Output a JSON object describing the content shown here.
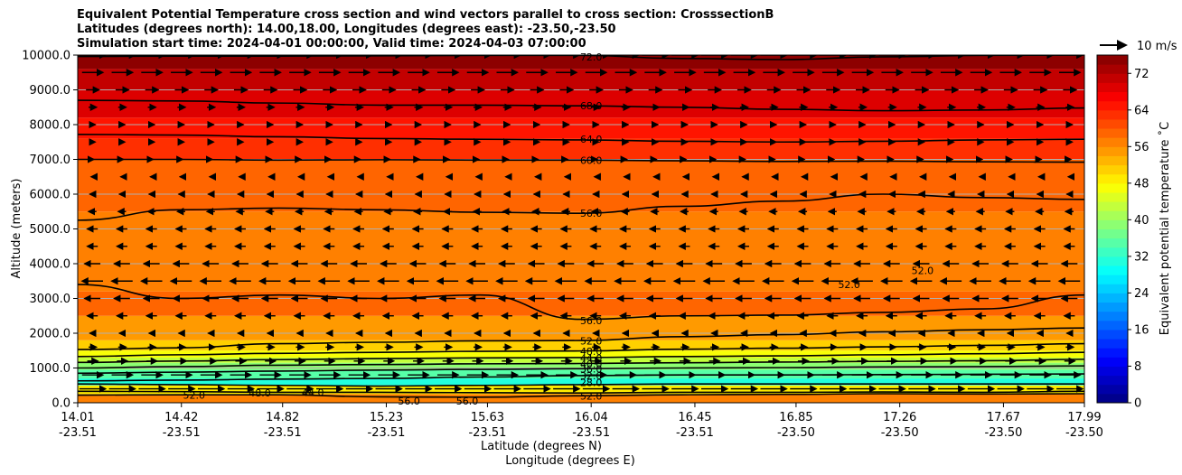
{
  "chart_data": {
    "type": "heatmap",
    "title_lines": [
      "Equivalent Potential Temperature cross section and wind vectors parallel to cross section: CrosssectionB",
      "Latitudes (degrees north): 14.00,18.00, Longitudes (degrees east): -23.50,-23.50",
      "Simulation start time: 2024-04-01 00:00:00, Valid time: 2024-04-03 07:00:00"
    ],
    "ylabel": "Altitude (meters)",
    "xlabel_lat": "Latitude (degrees N)",
    "xlabel_lon": "Longitude (degrees E)",
    "colorbar_label": "Equivalent potential temperature ˚C",
    "wind_key_label": "10 m/s",
    "ylim": [
      0,
      10000
    ],
    "y_ticks": [
      "0.0",
      "1000.0",
      "2000.0",
      "3000.0",
      "4000.0",
      "5000.0",
      "6000.0",
      "7000.0",
      "8000.0",
      "9000.0",
      "10000.0"
    ],
    "x_ticks_lat": [
      "14.01",
      "14.42",
      "14.82",
      "15.23",
      "15.63",
      "16.04",
      "16.45",
      "16.85",
      "17.26",
      "17.67",
      "17.99"
    ],
    "x_ticks_lon": [
      "-23.51",
      "-23.51",
      "-23.51",
      "-23.51",
      "-23.51",
      "-23.51",
      "-23.51",
      "-23.50",
      "-23.50",
      "-23.50",
      "-23.50"
    ],
    "colorbar_range": [
      0,
      76
    ],
    "colorbar_ticks": [
      "0",
      "8",
      "16",
      "24",
      "32",
      "40",
      "48",
      "56",
      "64",
      "72"
    ],
    "contour_labels": [
      {
        "text": "72.0",
        "lat": 16.04,
        "alt": 9950
      },
      {
        "text": "68.0",
        "lat": 16.04,
        "alt": 8540
      },
      {
        "text": "64.0",
        "lat": 16.04,
        "alt": 7580
      },
      {
        "text": "60.0",
        "lat": 16.04,
        "alt": 6980
      },
      {
        "text": "56.0",
        "lat": 16.04,
        "alt": 5450
      },
      {
        "text": "56.0",
        "lat": 16.04,
        "alt": 2370
      },
      {
        "text": "52.0",
        "lat": 16.04,
        "alt": 1780
      },
      {
        "text": "48.0",
        "lat": 16.04,
        "alt": 1480
      },
      {
        "text": "44.0",
        "lat": 16.04,
        "alt": 1280
      },
      {
        "text": "40.0",
        "lat": 16.04,
        "alt": 1120
      },
      {
        "text": "36.0",
        "lat": 16.04,
        "alt": 980
      },
      {
        "text": "32.0",
        "lat": 16.04,
        "alt": 780
      },
      {
        "text": "28.0",
        "lat": 16.04,
        "alt": 580
      },
      {
        "text": "52.0",
        "lat": 16.04,
        "alt": 200
      },
      {
        "text": "52.0",
        "lat": 14.47,
        "alt": 220
      },
      {
        "text": "48.0",
        "lat": 14.73,
        "alt": 280
      },
      {
        "text": "44.0",
        "lat": 14.94,
        "alt": 300
      },
      {
        "text": "56.0",
        "lat": 15.32,
        "alt": 50
      },
      {
        "text": "56.0",
        "lat": 15.55,
        "alt": 50
      },
      {
        "text": "52.0",
        "lat": 17.06,
        "alt": 3400
      },
      {
        "text": "52.0",
        "lat": 17.35,
        "alt": 3800
      }
    ],
    "contours": [
      {
        "level": 72,
        "alt": [
          9960,
          9970,
          9970,
          9980,
          9990,
          9990,
          9900,
          9870,
          9950,
          9990,
          10000
        ]
      },
      {
        "level": 68,
        "alt": [
          8700,
          8680,
          8620,
          8560,
          8560,
          8540,
          8500,
          8440,
          8400,
          8420,
          8480
        ]
      },
      {
        "level": 64,
        "alt": [
          7720,
          7700,
          7650,
          7600,
          7580,
          7560,
          7520,
          7500,
          7520,
          7560,
          7580
        ]
      },
      {
        "level": 60,
        "alt": [
          7000,
          7000,
          6980,
          6990,
          6980,
          6980,
          6960,
          6940,
          6950,
          6930,
          6920
        ]
      },
      {
        "level": 56,
        "alt": [
          5250,
          5550,
          5600,
          5550,
          5480,
          5450,
          5650,
          5800,
          6000,
          5900,
          5850
        ]
      },
      {
        "level": 56,
        "alt": [
          3400,
          3000,
          3100,
          3000,
          3100,
          2400,
          2500,
          2520,
          2600,
          2700,
          3100
        ]
      },
      {
        "level": 52,
        "alt": [
          1530,
          1580,
          1700,
          1740,
          1780,
          1790,
          1900,
          1960,
          2040,
          2100,
          2150
        ]
      },
      {
        "level": 48,
        "alt": [
          1330,
          1380,
          1420,
          1450,
          1480,
          1490,
          1540,
          1570,
          1610,
          1650,
          1700
        ]
      },
      {
        "level": 44,
        "alt": [
          1160,
          1200,
          1240,
          1270,
          1290,
          1300,
          1330,
          1350,
          1380,
          1410,
          1450
        ]
      },
      {
        "level": 40,
        "alt": [
          1000,
          1040,
          1080,
          1100,
          1120,
          1130,
          1150,
          1170,
          1190,
          1210,
          1250
        ]
      },
      {
        "level": 36,
        "alt": [
          850,
          880,
          910,
          940,
          960,
          980,
          1000,
          1010,
          1030,
          1040,
          1060
        ]
      },
      {
        "level": 32,
        "alt": [
          630,
          650,
          680,
          700,
          740,
          780,
          800,
          800,
          810,
          820,
          830
        ]
      },
      {
        "level": 28,
        "alt": [
          540,
          520,
          500,
          480,
          500,
          520,
          540,
          540,
          540,
          540,
          540
        ]
      },
      {
        "level": 52,
        "alt": [
          330,
          320,
          300,
          300,
          290,
          280,
          300,
          300,
          310,
          300,
          330
        ]
      },
      {
        "level": 56,
        "alt": [
          220,
          230,
          230,
          170,
          160,
          200,
          230,
          240,
          260,
          250,
          260
        ]
      }
    ],
    "field_bands": [
      {
        "from": 0,
        "to": 250,
        "value": 56
      },
      {
        "from": 250,
        "to": 500,
        "value": 48
      },
      {
        "from": 500,
        "to": 700,
        "value": 30
      },
      {
        "from": 700,
        "to": 950,
        "value": 34
      },
      {
        "from": 950,
        "to": 1150,
        "value": 38
      },
      {
        "from": 1150,
        "to": 1300,
        "value": 42
      },
      {
        "from": 1300,
        "to": 1500,
        "value": 46
      },
      {
        "from": 1500,
        "to": 1800,
        "value": 50
      },
      {
        "from": 1800,
        "to": 2500,
        "value": 54
      },
      {
        "from": 2500,
        "to": 3200,
        "value": 58
      },
      {
        "from": 3200,
        "to": 5500,
        "value": 56
      },
      {
        "from": 5500,
        "to": 7000,
        "value": 58
      },
      {
        "from": 7000,
        "to": 7600,
        "value": 62
      },
      {
        "from": 7600,
        "to": 8200,
        "value": 65
      },
      {
        "from": 8200,
        "to": 9000,
        "value": 68
      },
      {
        "from": 9000,
        "to": 9600,
        "value": 71
      },
      {
        "from": 9600,
        "to": 10000,
        "value": 74
      }
    ],
    "wind_u_by_level": [
      {
        "alt": 400,
        "u": 10
      },
      {
        "alt": 800,
        "u": 8
      },
      {
        "alt": 1200,
        "u": 4
      },
      {
        "alt": 1600,
        "u": 3
      },
      {
        "alt": 2000,
        "u": -2
      },
      {
        "alt": 2500,
        "u": -4
      },
      {
        "alt": 3000,
        "u": -6
      },
      {
        "alt": 3500,
        "u": -8
      },
      {
        "alt": 4000,
        "u": -6
      },
      {
        "alt": 4500,
        "u": -4
      },
      {
        "alt": 5000,
        "u": -4
      },
      {
        "alt": 5500,
        "u": -3
      },
      {
        "alt": 6000,
        "u": -2
      },
      {
        "alt": 6500,
        "u": -1
      },
      {
        "alt": 7000,
        "u": 1
      },
      {
        "alt": 7500,
        "u": 2
      },
      {
        "alt": 8000,
        "u": 2
      },
      {
        "alt": 8500,
        "u": 3
      },
      {
        "alt": 9000,
        "u": 5
      },
      {
        "alt": 9500,
        "u": 8
      },
      {
        "alt": 10000,
        "u": 10
      }
    ],
    "wind_key_u": 10
  }
}
